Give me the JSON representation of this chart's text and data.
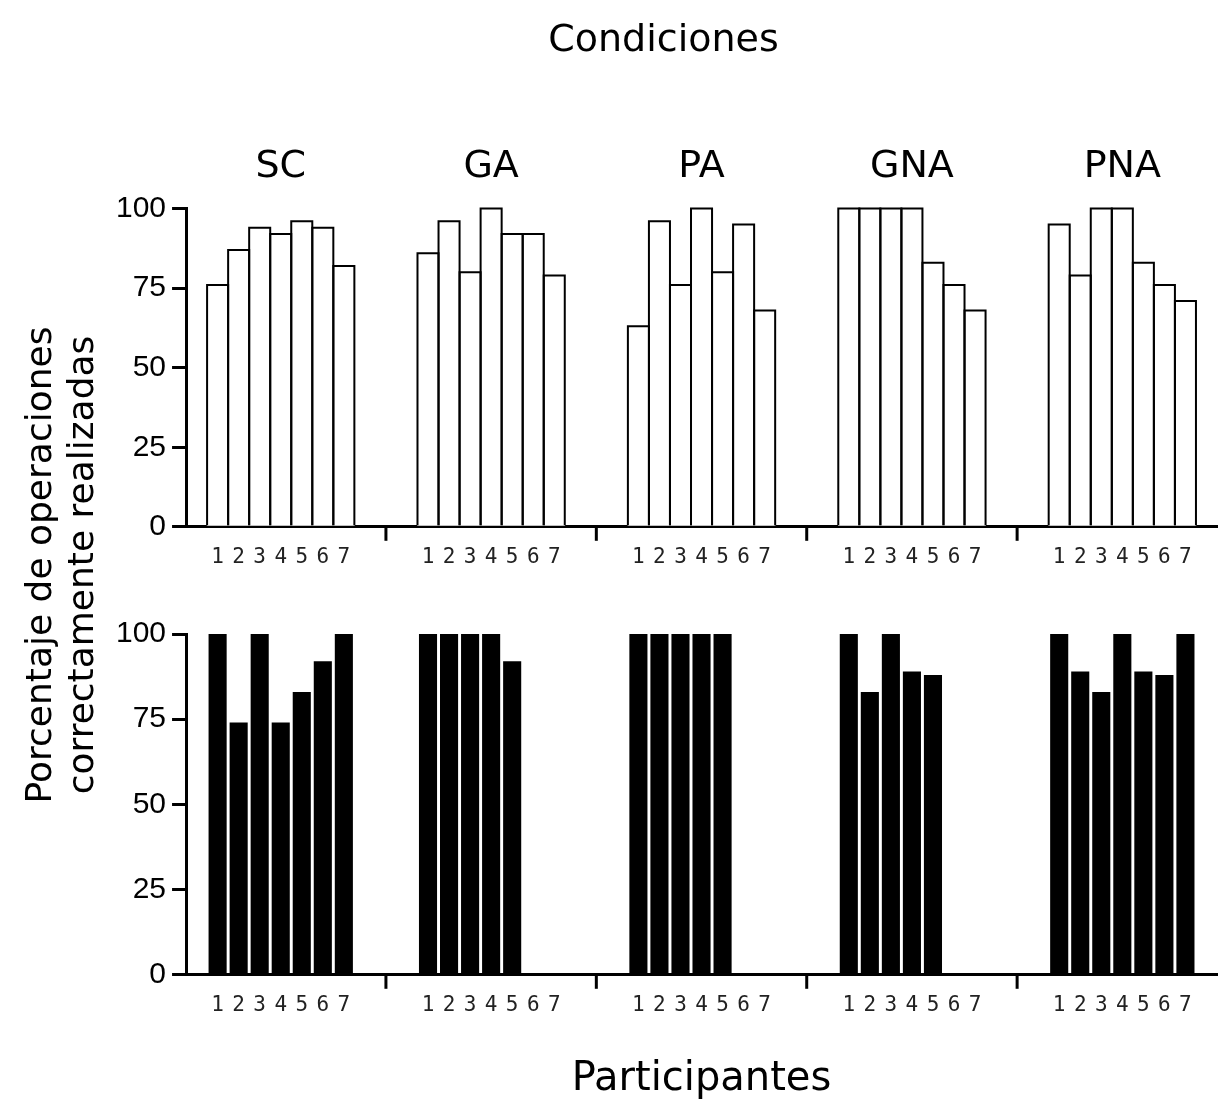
{
  "chart_data": [
    {
      "type": "bar",
      "title": "Condiciones",
      "annotations": [
        "SC",
        "GA",
        "PA",
        "GNA",
        "PNA"
      ],
      "ylabel": "Porcentaje de operaciones correctamente realizadas",
      "categories": [
        null,
        "1",
        "2",
        "3",
        "4",
        "5",
        "6",
        "7",
        null,
        null,
        null,
        "1",
        "2",
        "3",
        "4",
        "5",
        "6",
        "7",
        null,
        null,
        null,
        "1",
        "2",
        "3",
        "4",
        "5",
        "6",
        "7",
        null,
        null,
        null,
        "1",
        "2",
        "3",
        "4",
        "5",
        "6",
        "7",
        null,
        null,
        null,
        "1",
        "2",
        "3",
        "4",
        "5",
        "6",
        "7",
        null
      ],
      "values": [
        null,
        76,
        87,
        94,
        92,
        96,
        94,
        82,
        null,
        null,
        null,
        86,
        96,
        80,
        100,
        92,
        92,
        79,
        null,
        null,
        null,
        63,
        96,
        76,
        100,
        80,
        95,
        68,
        null,
        null,
        null,
        100,
        100,
        100,
        100,
        83,
        76,
        68,
        null,
        null,
        null,
        95,
        79,
        100,
        100,
        83,
        76,
        71,
        null
      ],
      "color": "#ffffff",
      "ylim": [
        0,
        100
      ],
      "yticks": [
        0,
        25,
        50,
        75,
        100
      ],
      "legend": false
    },
    {
      "type": "bar",
      "xlabel": "Participantes",
      "categories": [
        null,
        "1",
        "2",
        "3",
        "4",
        "5",
        "6",
        "7",
        null,
        null,
        null,
        "1",
        "2",
        "3",
        "4",
        "5",
        "6",
        "7",
        null,
        null,
        null,
        "1",
        "2",
        "3",
        "4",
        "5",
        "6",
        "7",
        null,
        null,
        null,
        "1",
        "2",
        "3",
        "4",
        "5",
        "6",
        "7",
        null,
        null,
        null,
        "1",
        "2",
        "3",
        "4",
        "5",
        "6",
        "7",
        null
      ],
      "values": [
        null,
        100,
        74,
        100,
        74,
        83,
        92,
        100,
        null,
        null,
        null,
        100,
        100,
        100,
        100,
        92,
        null,
        null,
        null,
        null,
        null,
        100,
        100,
        100,
        100,
        100,
        null,
        null,
        null,
        null,
        null,
        100,
        83,
        100,
        89,
        88,
        null,
        null,
        null,
        null,
        null,
        100,
        89,
        83,
        100,
        89,
        88,
        100,
        null
      ],
      "color": "#000000",
      "ylim": [
        0,
        100
      ],
      "yticks": [
        0,
        25,
        50,
        75,
        100
      ],
      "legend": false
    }
  ]
}
